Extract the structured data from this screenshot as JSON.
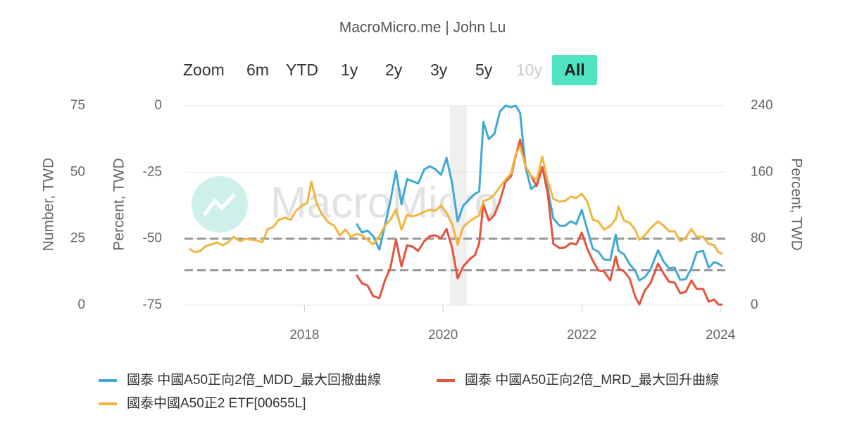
{
  "chart_data": {
    "type": "line",
    "title": "MacroMicro.me | John Lu",
    "watermark": "MacroMicro",
    "zoom": {
      "label": "Zoom",
      "buttons": [
        {
          "label": "6m"
        },
        {
          "label": "YTD"
        },
        {
          "label": "1y"
        },
        {
          "label": "2y"
        },
        {
          "label": "3y"
        },
        {
          "label": "5y"
        },
        {
          "label": "10y",
          "disabled": true
        },
        {
          "label": "All",
          "selected": true
        }
      ]
    },
    "ylabel": "Number, TWD",
    "y2label": "Percent, TWD",
    "y3label": "Percent, TWD",
    "xlim": [
      2016.27,
      2024.07
    ],
    "xticks": [
      2018,
      2020,
      2022,
      2024
    ],
    "ylim": [
      0,
      75
    ],
    "yticks": [
      0,
      25,
      50,
      75
    ],
    "y2lim": [
      -75,
      0
    ],
    "y2ticks": [
      -75,
      -50,
      -25,
      0
    ],
    "y3lim": [
      0,
      240
    ],
    "y3ticks": [
      0,
      80,
      160,
      240
    ],
    "grid": true,
    "x_band": [
      2020.1,
      2020.34
    ],
    "plot_lines": {
      "axis": "y3",
      "values": [
        80,
        42
      ]
    },
    "x": [
      2016.34,
      2016.42,
      2016.5,
      2016.58,
      2016.66,
      2016.74,
      2016.82,
      2016.9,
      2016.98,
      2017.07,
      2017.15,
      2017.23,
      2017.31,
      2017.39,
      2017.47,
      2017.55,
      2017.63,
      2017.72,
      2017.8,
      2017.88,
      2017.96,
      2018.04,
      2018.1,
      2018.18,
      2018.26,
      2018.35,
      2018.43,
      2018.51,
      2018.59,
      2018.67,
      2018.75,
      2018.83,
      2018.91,
      2018.99,
      2019.08,
      2019.16,
      2019.24,
      2019.32,
      2019.4,
      2019.48,
      2019.56,
      2019.64,
      2019.73,
      2019.81,
      2019.89,
      2019.97,
      2020.05,
      2020.13,
      2020.21,
      2020.29,
      2020.38,
      2020.46,
      2020.52,
      2020.58,
      2020.66,
      2020.74,
      2020.82,
      2020.9,
      2020.98,
      2021.05,
      2021.11,
      2021.19,
      2021.27,
      2021.35,
      2021.43,
      2021.51,
      2021.59,
      2021.68,
      2021.76,
      2021.84,
      2021.92,
      2022.0,
      2022.08,
      2022.16,
      2022.24,
      2022.32,
      2022.41,
      2022.49,
      2022.53,
      2022.61,
      2022.69,
      2022.77,
      2022.83,
      2022.91,
      2022.99,
      2023.1,
      2023.18,
      2023.26,
      2023.34,
      2023.42,
      2023.5,
      2023.58,
      2023.66,
      2023.75,
      2023.83,
      2023.91,
      2023.97,
      2024.03
    ],
    "series": [
      {
        "name": "國泰 中國A50正向2倍_MDD_最大回撤曲線",
        "color": "#3fa9d6",
        "axis": "y2",
        "values": [
          null,
          null,
          null,
          null,
          null,
          null,
          null,
          null,
          null,
          null,
          null,
          null,
          null,
          null,
          null,
          null,
          null,
          null,
          null,
          null,
          null,
          null,
          null,
          null,
          null,
          null,
          null,
          null,
          null,
          null,
          -44.3,
          -47.7,
          -46.9,
          -49.0,
          -54.1,
          -45.1,
          -35.8,
          -24.6,
          -37.1,
          -27.6,
          -28.4,
          -29.2,
          -23.9,
          -22.8,
          -23.9,
          -26.0,
          -19.6,
          -29.2,
          -43.5,
          -37.6,
          -35.2,
          -33.1,
          -32.3,
          -6.1,
          -12.5,
          -10.6,
          -2.1,
          0,
          -0.5,
          0,
          -2.7,
          -23.3,
          -31.3,
          -29.7,
          -23.3,
          -31.3,
          -42.4,
          -45.1,
          -45.1,
          -43.5,
          -44.5,
          -39.2,
          -46.6,
          -53.8,
          -54.9,
          -57.8,
          -58.0,
          -48.5,
          -54.6,
          -55.9,
          -59.6,
          -62.0,
          -65.7,
          -64.4,
          -61.7,
          -54.3,
          -58.6,
          -61.2,
          -60.9,
          -65.5,
          -65.2,
          -61.2,
          -55.1,
          -54.6,
          -60.9,
          -58.8,
          -59.4,
          -60.4
        ]
      },
      {
        "name": "國泰 中國A50正向2倍_MRD_最大回升曲線",
        "color": "#e5533c",
        "axis": "y3",
        "values": [
          null,
          null,
          null,
          null,
          null,
          null,
          null,
          null,
          null,
          null,
          null,
          null,
          null,
          null,
          null,
          null,
          null,
          null,
          null,
          null,
          null,
          null,
          null,
          null,
          null,
          null,
          null,
          null,
          null,
          null,
          36.5,
          26.3,
          23.7,
          11.0,
          8.5,
          29.7,
          44.9,
          78.9,
          46.6,
          72.1,
          70.4,
          65.3,
          77.2,
          83.1,
          84.0,
          80.6,
          91.6,
          68.7,
          32.2,
          46.6,
          55.1,
          60.2,
          74.6,
          121.3,
          101.8,
          108.5,
          125.5,
          148.4,
          155.2,
          180.6,
          199.3,
          167.1,
          155.2,
          143.3,
          166.2,
          134.0,
          73.8,
          68.7,
          69.5,
          74.6,
          72.9,
          87.3,
          67.8,
          53.4,
          41.6,
          40.7,
          29.7,
          58.5,
          44.1,
          40.7,
          32.2,
          10.2,
          0.8,
          17.8,
          26.3,
          50.0,
          38.2,
          28.0,
          27.1,
          14.4,
          16.1,
          29.7,
          19.5,
          19.5,
          4.2,
          6.8,
          0.8,
          0.8
        ]
      },
      {
        "name": "國泰中國A50正2 ETF[00655L]",
        "color": "#f0b53f",
        "axis": "y",
        "values": [
          21.2,
          19.9,
          20.4,
          22.3,
          22.8,
          23.6,
          22.5,
          23.6,
          25.7,
          24.1,
          24.9,
          24.6,
          24.4,
          23.6,
          28.6,
          29.4,
          32.1,
          32.9,
          32.1,
          35.5,
          37.4,
          38.4,
          46.4,
          37.9,
          33.9,
          31.0,
          29.9,
          26.2,
          28.4,
          25.7,
          26.8,
          26.2,
          24.6,
          22.8,
          26.0,
          29.9,
          32.1,
          36.0,
          28.4,
          33.9,
          33.4,
          33.9,
          35.2,
          35.8,
          35.5,
          37.4,
          34.7,
          30.5,
          22.8,
          29.4,
          31.5,
          32.9,
          33.7,
          39.2,
          39.8,
          41.6,
          44.5,
          47.2,
          49.6,
          57.0,
          59.6,
          52.2,
          48.5,
          47.2,
          55.9,
          46.6,
          40.0,
          38.9,
          39.2,
          40.8,
          40.3,
          41.9,
          38.9,
          32.1,
          31.5,
          28.4,
          29.7,
          32.3,
          37.1,
          31.8,
          31.0,
          28.4,
          24.6,
          26.2,
          28.9,
          31.5,
          29.9,
          27.8,
          27.8,
          24.1,
          25.4,
          28.6,
          25.7,
          25.7,
          23.1,
          22.5,
          19.9,
          19.3
        ]
      }
    ]
  }
}
